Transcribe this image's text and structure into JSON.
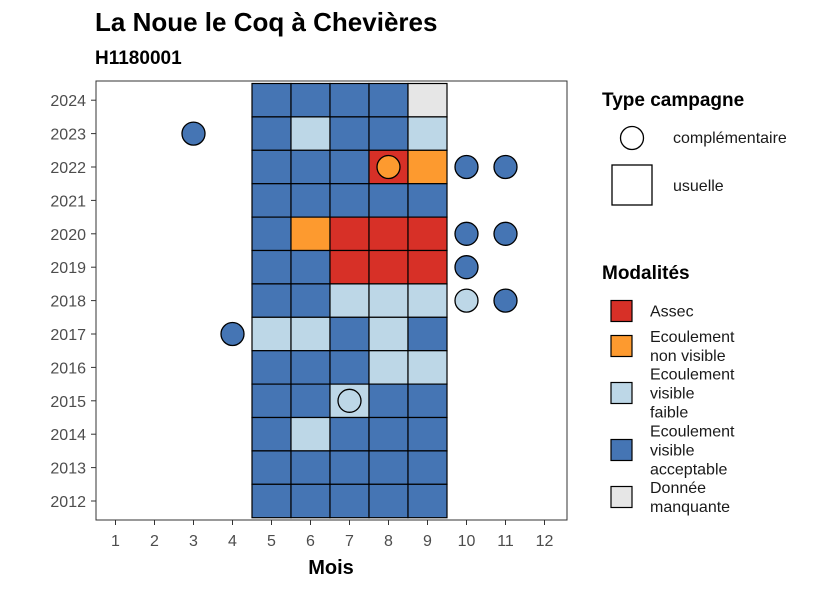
{
  "chart_data": {
    "type": "heatmap",
    "title": "La Noue le Coq à Chevières",
    "subtitle": "H1180001",
    "xlabel": "Mois",
    "ylabel": "",
    "x_ticks": [
      "1",
      "2",
      "3",
      "4",
      "5",
      "6",
      "7",
      "8",
      "9",
      "10",
      "11",
      "12"
    ],
    "y_ticks": [
      "2012",
      "2013",
      "2014",
      "2015",
      "2016",
      "2017",
      "2018",
      "2019",
      "2020",
      "2021",
      "2022",
      "2023",
      "2024"
    ],
    "xlim": [
      0.5,
      12.5
    ],
    "ylim": [
      2011.5,
      2024.5
    ],
    "colors": {
      "Assec": "#d73027",
      "Ecoulement non visible": "#fd9a2f",
      "Ecoulement visible faible": "#bdd7e7",
      "Ecoulement visible acceptable": "#4575b4",
      "Donnée manquante": "#e6e6e6"
    },
    "usuelle": [
      {
        "year": 2024,
        "months": [
          "acc",
          "acc",
          "acc",
          "acc",
          "miss"
        ]
      },
      {
        "year": 2023,
        "months": [
          "acc",
          "fai",
          "acc",
          "acc",
          "fai"
        ]
      },
      {
        "year": 2022,
        "months": [
          "acc",
          "acc",
          "acc",
          "assec",
          "nonv"
        ]
      },
      {
        "year": 2021,
        "months": [
          "acc",
          "acc",
          "acc",
          "acc",
          "acc"
        ]
      },
      {
        "year": 2020,
        "months": [
          "acc",
          "nonv",
          "assec",
          "assec",
          "assec"
        ]
      },
      {
        "year": 2019,
        "months": [
          "acc",
          "acc",
          "assec",
          "assec",
          "assec"
        ]
      },
      {
        "year": 2018,
        "months": [
          "acc",
          "acc",
          "fai",
          "fai",
          "fai"
        ]
      },
      {
        "year": 2017,
        "months": [
          "fai",
          "fai",
          "acc",
          "fai",
          "acc"
        ]
      },
      {
        "year": 2016,
        "months": [
          "acc",
          "acc",
          "acc",
          "fai",
          "fai"
        ]
      },
      {
        "year": 2015,
        "months": [
          "acc",
          "acc",
          "fai",
          "acc",
          "acc"
        ]
      },
      {
        "year": 2014,
        "months": [
          "acc",
          "fai",
          "acc",
          "acc",
          "acc"
        ]
      },
      {
        "year": 2013,
        "months": [
          "acc",
          "acc",
          "acc",
          "acc",
          "acc"
        ]
      },
      {
        "year": 2012,
        "months": [
          "acc",
          "acc",
          "acc",
          "acc",
          "acc"
        ]
      }
    ],
    "usuelle_months": [
      5,
      6,
      7,
      8,
      9
    ],
    "codes": {
      "acc": "Ecoulement visible acceptable",
      "fai": "Ecoulement visible faible",
      "nonv": "Ecoulement non visible",
      "assec": "Assec",
      "miss": "Donnée manquante"
    },
    "complementaire": [
      {
        "month": 3,
        "year": 2023,
        "value": "acc"
      },
      {
        "month": 8,
        "year": 2022,
        "value": "nonv"
      },
      {
        "month": 10,
        "year": 2022,
        "value": "acc"
      },
      {
        "month": 11,
        "year": 2022,
        "value": "acc"
      },
      {
        "month": 10,
        "year": 2020,
        "value": "acc"
      },
      {
        "month": 11,
        "year": 2020,
        "value": "acc"
      },
      {
        "month": 10,
        "year": 2019,
        "value": "acc"
      },
      {
        "month": 10,
        "year": 2018,
        "value": "fai"
      },
      {
        "month": 11,
        "year": 2018,
        "value": "acc"
      },
      {
        "month": 4,
        "year": 2017,
        "value": "acc"
      },
      {
        "month": 7,
        "year": 2015,
        "value": "fai"
      }
    ],
    "legend_type": {
      "title": "Type campagne",
      "items": [
        "complémentaire",
        "usuelle"
      ]
    },
    "legend_modalites": {
      "title": "Modalités",
      "items": [
        {
          "key": "assec",
          "lines": [
            "Assec"
          ]
        },
        {
          "key": "nonv",
          "lines": [
            "Ecoulement",
            "non visible"
          ]
        },
        {
          "key": "fai",
          "lines": [
            "Ecoulement",
            "visible",
            "faible"
          ]
        },
        {
          "key": "acc",
          "lines": [
            "Ecoulement",
            "visible",
            "acceptable"
          ]
        },
        {
          "key": "miss",
          "lines": [
            "Donnée",
            "manquante"
          ]
        }
      ]
    },
    "grid": false,
    "legend_position": "right"
  }
}
